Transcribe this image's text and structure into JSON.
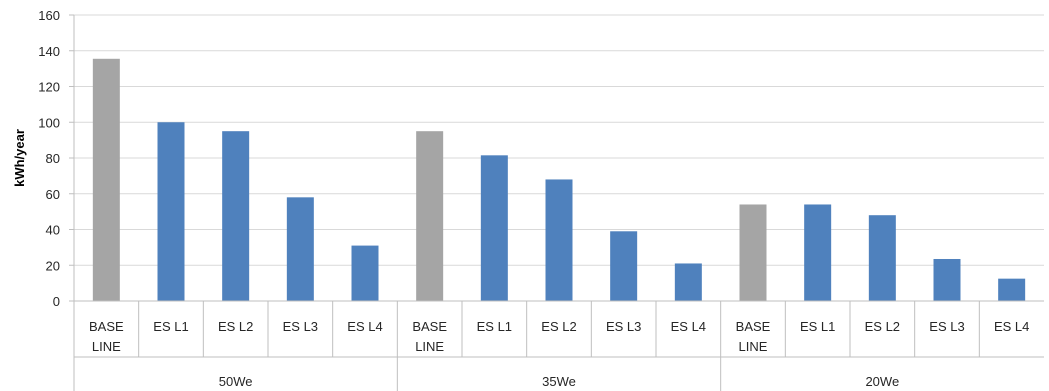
{
  "chart_data": {
    "type": "bar",
    "ylabel": "kWh/year",
    "ylim": [
      0,
      160
    ],
    "yticks": [
      0,
      20,
      40,
      60,
      80,
      100,
      120,
      140,
      160
    ],
    "grid": true,
    "groups": [
      {
        "label": "50We",
        "bars": [
          {
            "label": [
              "BASE",
              "LINE"
            ],
            "value": 135.5,
            "kind": "baseline"
          },
          {
            "label": [
              "ES L1"
            ],
            "value": 100,
            "kind": "es"
          },
          {
            "label": [
              "ES L2"
            ],
            "value": 95,
            "kind": "es"
          },
          {
            "label": [
              "ES L3"
            ],
            "value": 58,
            "kind": "es"
          },
          {
            "label": [
              "ES L4"
            ],
            "value": 31,
            "kind": "es"
          }
        ]
      },
      {
        "label": "35We",
        "bars": [
          {
            "label": [
              "BASE",
              "LINE"
            ],
            "value": 95,
            "kind": "baseline"
          },
          {
            "label": [
              "ES L1"
            ],
            "value": 81.5,
            "kind": "es"
          },
          {
            "label": [
              "ES L2"
            ],
            "value": 68,
            "kind": "es"
          },
          {
            "label": [
              "ES L3"
            ],
            "value": 39,
            "kind": "es"
          },
          {
            "label": [
              "ES L4"
            ],
            "value": 21,
            "kind": "es"
          }
        ]
      },
      {
        "label": "20We",
        "bars": [
          {
            "label": [
              "BASE",
              "LINE"
            ],
            "value": 54,
            "kind": "baseline"
          },
          {
            "label": [
              "ES L1"
            ],
            "value": 54,
            "kind": "es"
          },
          {
            "label": [
              "ES L2"
            ],
            "value": 48,
            "kind": "es"
          },
          {
            "label": [
              "ES L3"
            ],
            "value": 23.5,
            "kind": "es"
          },
          {
            "label": [
              "ES L4"
            ],
            "value": 12.5,
            "kind": "es"
          }
        ]
      }
    ],
    "colors": {
      "baseline": "#a5a5a5",
      "es": "#4f81bd",
      "grid": "#d9d9d9",
      "axis": "#bfbfbf"
    }
  }
}
